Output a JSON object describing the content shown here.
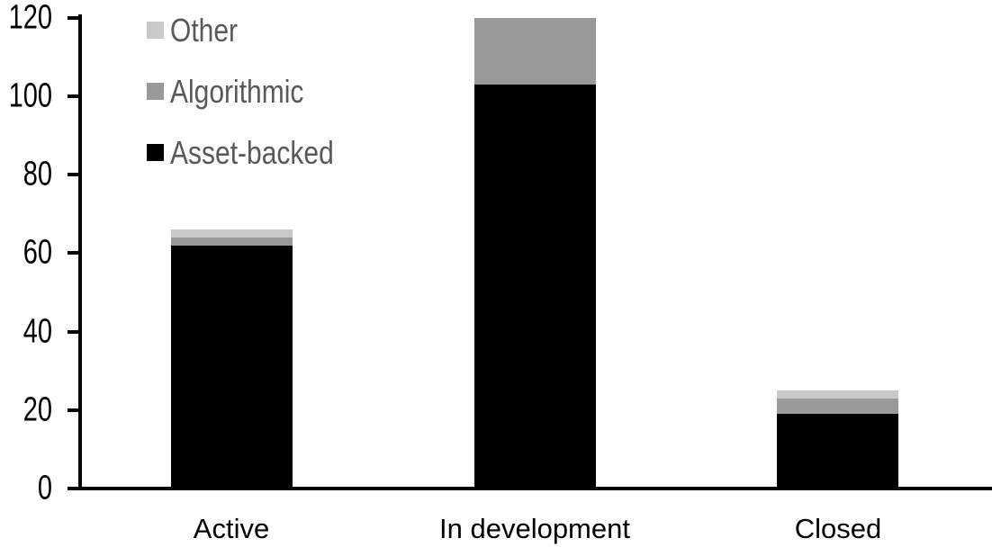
{
  "chart_data": {
    "type": "bar",
    "stacked": true,
    "title": "",
    "xlabel": "",
    "ylabel": "",
    "categories": [
      "Active",
      "In development",
      "Closed"
    ],
    "series": [
      {
        "name": "Asset-backed",
        "color": "#000000",
        "values": [
          62,
          103,
          19
        ]
      },
      {
        "name": "Algorithmic",
        "color": "#999999",
        "values": [
          2,
          17,
          4
        ]
      },
      {
        "name": "Other",
        "color": "#c9c9c9",
        "values": [
          2,
          0,
          2
        ]
      }
    ],
    "legend_order": [
      "Other",
      "Algorithmic",
      "Asset-backed"
    ],
    "legend_position": "top-left",
    "legend_text_color": "#595959",
    "axis_color": "#000000",
    "ylim": [
      0,
      120
    ],
    "yticks": [
      0,
      20,
      40,
      60,
      80,
      100,
      120
    ],
    "grid": false
  }
}
